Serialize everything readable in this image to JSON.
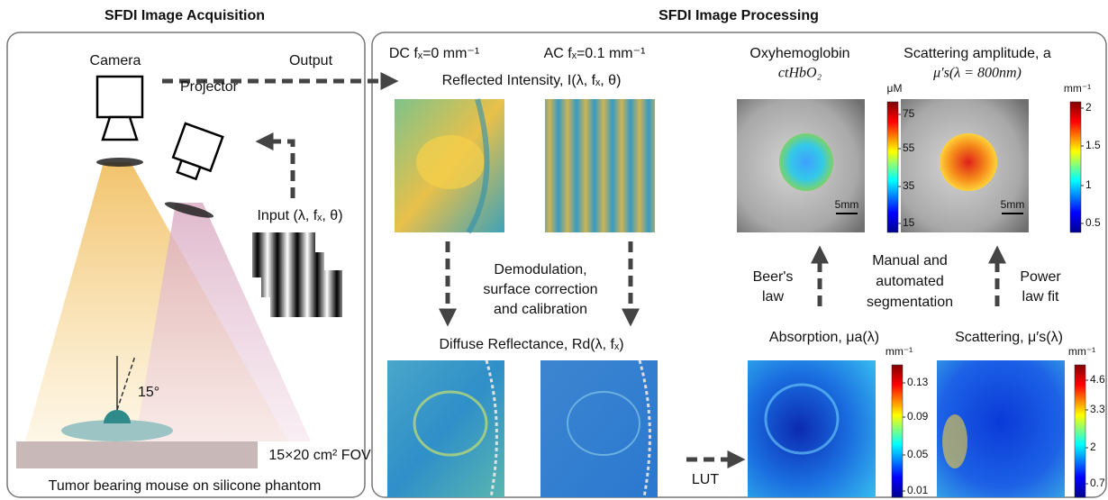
{
  "headers": {
    "acquisition": "SFDI Image Acquisition",
    "processing": "SFDI Image Processing"
  },
  "acquisition": {
    "camera": "Camera",
    "output": "Output",
    "projector": "Projector",
    "input": "Input (λ, fₓ, θ)",
    "angle": "15°",
    "fov": "15×20 cm² FOV",
    "caption": "Tumor bearing mouse on silicone phantom"
  },
  "processing": {
    "dc": "DC fₓ=0 mm⁻¹",
    "ac": "AC fₓ=0.1 mm⁻¹",
    "reflected": "Reflected Intensity, I(λ, fₓ, θ)",
    "demod": [
      "Demodulation,",
      "surface correction",
      "and calibration"
    ],
    "diffuse": "Diffuse Reflectance, Rd(λ, fₓ)",
    "lut": "LUT"
  },
  "maps": [
    {
      "title": "Oxyhemoglobin",
      "subtitle": "ctHbO₂",
      "unit": "μM",
      "ticks": [
        "75",
        "55",
        "35",
        "15"
      ],
      "scale": "5mm"
    },
    {
      "title": "Scattering amplitude, a",
      "subtitle": "μ′s(λ = 800nm)",
      "unit": "mm⁻¹",
      "ticks": [
        "2",
        "1.5",
        "1",
        "0.5"
      ],
      "scale": "5mm"
    },
    {
      "title": "Absorption, μa(λ)",
      "unit": "mm⁻¹",
      "ticks": [
        "0.13",
        "0.09",
        "0.05",
        "0.01"
      ]
    },
    {
      "title": "Scattering, μ′s(λ)",
      "unit": "mm⁻¹",
      "ticks": [
        "4.6",
        "3.3",
        "2",
        "0.7"
      ]
    }
  ],
  "steps": {
    "beer": [
      "Beer's",
      "law"
    ],
    "segmentation": [
      "Manual and",
      "automated",
      "segmentation"
    ],
    "power": [
      "Power",
      "law fit"
    ]
  }
}
